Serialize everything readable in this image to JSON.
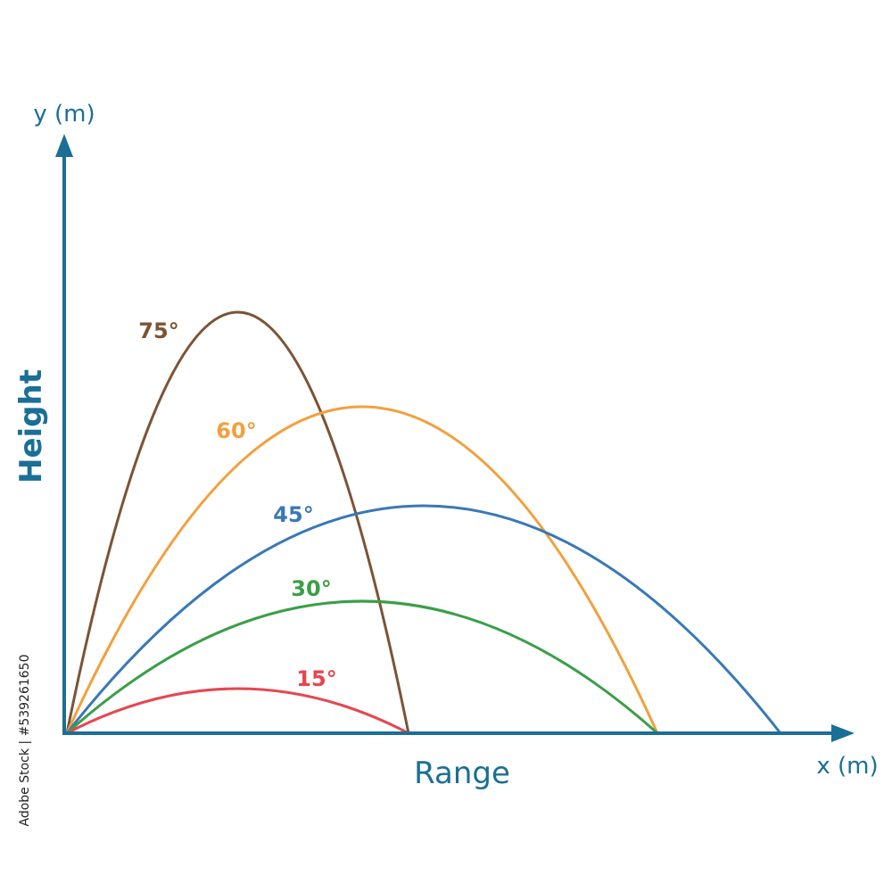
{
  "axes": {
    "y_axis_label": "y (m)",
    "x_axis_label": "x (m)",
    "vertical_title": "Height",
    "horizontal_title": "Range",
    "axis_color": "#1a6f96"
  },
  "trajectories": [
    {
      "angle_label": "75°",
      "launch_angle": 75,
      "color": "#7b5435",
      "range": 383,
      "peak_height": 472
    },
    {
      "angle_label": "60°",
      "launch_angle": 60,
      "color": "#f2a03d",
      "range": 662,
      "peak_height": 366
    },
    {
      "angle_label": "45°",
      "launch_angle": 45,
      "color": "#3978b8",
      "range": 800,
      "peak_height": 255
    },
    {
      "angle_label": "30°",
      "launch_angle": 30,
      "color": "#3a9f48",
      "range": 662,
      "peak_height": 148
    },
    {
      "angle_label": "15°",
      "launch_angle": 15,
      "color": "#e5474f",
      "range": 383,
      "peak_height": 50
    }
  ],
  "watermark": {
    "stock_id": "Adobe Stock | #539261650"
  }
}
